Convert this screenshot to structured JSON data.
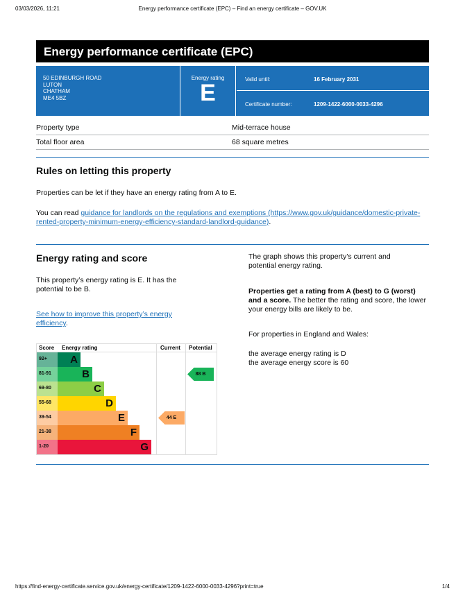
{
  "browser": {
    "datetime": "03/03/2026, 11:21",
    "title": "Energy performance certificate (EPC) – Find an energy certificate – GOV.UK",
    "url": "https://find-energy-certificate.service.gov.uk/energy-certificate/1209-1422-6000-0033-4296?print=true",
    "page": "1/4"
  },
  "header": {
    "title": "Energy performance certificate (EPC)"
  },
  "address": [
    "50 EDINBURGH ROAD",
    "LUTON",
    "CHATHAM",
    "ME4 5BZ"
  ],
  "rating": {
    "label": "Energy rating",
    "value": "E"
  },
  "valid": {
    "label": "Valid until:",
    "value": "16 February 2031"
  },
  "cert": {
    "label": "Certificate number:",
    "value": "1209-1422-6000-0033-4296"
  },
  "property": [
    {
      "k": "Property type",
      "v": "Mid-terrace house"
    },
    {
      "k": "Total floor area",
      "v": "68 square metres"
    }
  ],
  "rules": {
    "title": "Rules on letting this property",
    "p1": "Properties can be let if they have an energy rating from A to E.",
    "p2_pre": "You can read ",
    "link": "guidance for landlords on the regulations and exemptions (https://www.gov.uk/guidance/domestic-private-rented-property-minimum-energy-efficiency-standard-landlord-guidance)",
    "p2_post": "."
  },
  "score": {
    "title": "Energy rating and score",
    "p1": "This property’s energy rating is E. It has the potential to be B.",
    "link": "See how to improve this property’s energy efficiency",
    "link_post": ".",
    "r1": "The graph shows this property’s current and potential energy rating.",
    "r2_bold": "Properties get a rating from A (best) to G (worst) and a score.",
    "r2": " The better the rating and score, the lower your energy bills are likely to be.",
    "r3": "For properties in England and Wales:",
    "r4": "the average energy rating is D",
    "r5": "the average energy score is 60"
  },
  "chart_data": {
    "type": "bar",
    "headers": [
      "Score",
      "Energy rating",
      "Current",
      "Potential"
    ],
    "bands": [
      {
        "score": "92+",
        "letter": "A",
        "color": "#008054",
        "light": "#66b398"
      },
      {
        "score": "81-91",
        "letter": "B",
        "color": "#19b459",
        "light": "#75d29b"
      },
      {
        "score": "69-80",
        "letter": "C",
        "color": "#8dce46",
        "light": "#bbe290"
      },
      {
        "score": "55-68",
        "letter": "D",
        "color": "#ffd500",
        "light": "#ffe666"
      },
      {
        "score": "39-54",
        "letter": "E",
        "color": "#fcaa65",
        "light": "#fdcca3"
      },
      {
        "score": "21-38",
        "letter": "F",
        "color": "#ef8023",
        "light": "#f5b37b"
      },
      {
        "score": "1-20",
        "letter": "G",
        "color": "#e9153b",
        "light": "#f27389"
      }
    ],
    "current": {
      "score": 44,
      "band": "E",
      "label": "44 E"
    },
    "potential": {
      "score": 88,
      "band": "B",
      "label": "88 B"
    }
  }
}
